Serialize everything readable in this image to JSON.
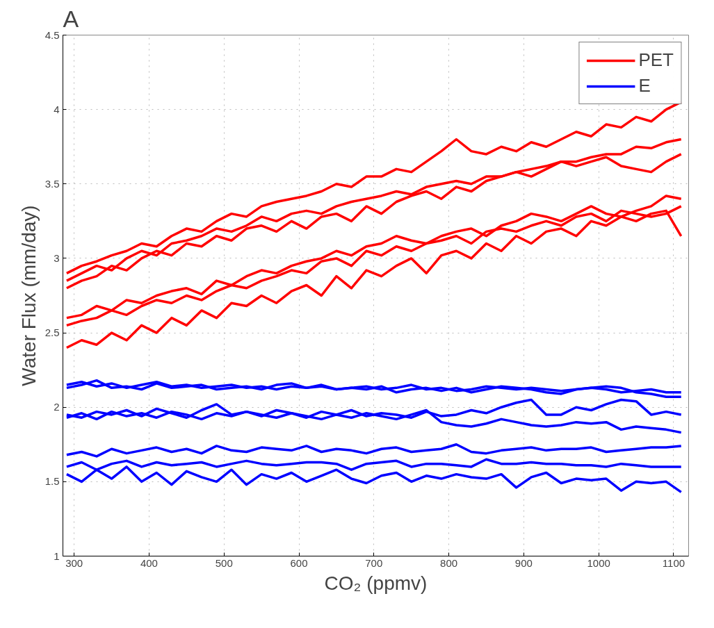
{
  "chart_data": {
    "type": "line",
    "title": "A",
    "xlabel": "CO₂ (ppmv)",
    "ylabel": "Water Flux (mm/day)",
    "xlim": [
      285,
      1120
    ],
    "xticks": [
      300,
      400,
      500,
      600,
      700,
      800,
      900,
      1000,
      1100
    ],
    "ylim": [
      1,
      4.5
    ],
    "yticks": [
      1,
      1.5,
      2,
      2.5,
      3,
      3.5,
      4,
      4.5
    ],
    "grid": true,
    "legend": "top right",
    "line_style": "solid",
    "marker": "none",
    "x": [
      290,
      310,
      330,
      350,
      370,
      390,
      410,
      430,
      450,
      470,
      490,
      510,
      530,
      550,
      570,
      590,
      610,
      630,
      650,
      670,
      690,
      710,
      730,
      750,
      770,
      790,
      810,
      830,
      850,
      870,
      890,
      910,
      930,
      950,
      970,
      990,
      1010,
      1030,
      1050,
      1070,
      1090,
      1110
    ],
    "series": [
      {
        "name": "PET",
        "color": "#ff0000",
        "values": [
          2.9,
          2.95,
          2.98,
          3.02,
          3.05,
          3.1,
          3.08,
          3.15,
          3.2,
          3.18,
          3.25,
          3.3,
          3.28,
          3.35,
          3.38,
          3.4,
          3.42,
          3.45,
          3.5,
          3.48,
          3.55,
          3.55,
          3.6,
          3.58,
          3.65,
          3.72,
          3.8,
          3.72,
          3.7,
          3.75,
          3.72,
          3.78,
          3.75,
          3.8,
          3.85,
          3.82,
          3.9,
          3.88,
          3.95,
          3.92,
          4.0,
          4.05
        ]
      },
      {
        "color": "#ff0000",
        "values": [
          2.85,
          2.9,
          2.95,
          2.92,
          3.0,
          3.05,
          3.02,
          3.1,
          3.12,
          3.15,
          3.2,
          3.18,
          3.22,
          3.28,
          3.25,
          3.3,
          3.32,
          3.3,
          3.35,
          3.38,
          3.4,
          3.42,
          3.45,
          3.43,
          3.48,
          3.5,
          3.52,
          3.5,
          3.55,
          3.55,
          3.58,
          3.6,
          3.62,
          3.65,
          3.65,
          3.68,
          3.7,
          3.7,
          3.75,
          3.74,
          3.78,
          3.8
        ]
      },
      {
        "color": "#ff0000",
        "values": [
          2.8,
          2.85,
          2.88,
          2.95,
          2.92,
          3.0,
          3.05,
          3.02,
          3.1,
          3.08,
          3.15,
          3.12,
          3.2,
          3.22,
          3.18,
          3.25,
          3.2,
          3.28,
          3.3,
          3.25,
          3.35,
          3.3,
          3.38,
          3.42,
          3.45,
          3.4,
          3.48,
          3.45,
          3.52,
          3.55,
          3.58,
          3.55,
          3.6,
          3.65,
          3.62,
          3.65,
          3.68,
          3.62,
          3.6,
          3.58,
          3.65,
          3.7
        ]
      },
      {
        "color": "#ff0000",
        "values": [
          2.6,
          2.62,
          2.68,
          2.65,
          2.72,
          2.7,
          2.75,
          2.78,
          2.8,
          2.76,
          2.85,
          2.82,
          2.88,
          2.92,
          2.9,
          2.95,
          2.98,
          3.0,
          3.05,
          3.02,
          3.08,
          3.1,
          3.15,
          3.12,
          3.1,
          3.15,
          3.18,
          3.2,
          3.15,
          3.22,
          3.25,
          3.3,
          3.28,
          3.25,
          3.3,
          3.35,
          3.3,
          3.28,
          3.32,
          3.35,
          3.42,
          3.4
        ]
      },
      {
        "color": "#ff0000",
        "values": [
          2.55,
          2.58,
          2.6,
          2.65,
          2.62,
          2.68,
          2.72,
          2.7,
          2.75,
          2.72,
          2.78,
          2.82,
          2.8,
          2.85,
          2.88,
          2.92,
          2.9,
          2.98,
          3.0,
          2.95,
          3.05,
          3.02,
          3.08,
          3.05,
          3.1,
          3.12,
          3.15,
          3.1,
          3.18,
          3.2,
          3.18,
          3.22,
          3.25,
          3.22,
          3.28,
          3.3,
          3.25,
          3.32,
          3.3,
          3.28,
          3.3,
          3.35
        ]
      },
      {
        "color": "#ff0000",
        "values": [
          2.4,
          2.45,
          2.42,
          2.5,
          2.45,
          2.55,
          2.5,
          2.6,
          2.55,
          2.65,
          2.6,
          2.7,
          2.68,
          2.75,
          2.7,
          2.78,
          2.82,
          2.75,
          2.88,
          2.8,
          2.92,
          2.88,
          2.95,
          3.0,
          2.9,
          3.02,
          3.05,
          3.0,
          3.1,
          3.05,
          3.15,
          3.1,
          3.18,
          3.2,
          3.15,
          3.25,
          3.22,
          3.28,
          3.25,
          3.3,
          3.32,
          3.15
        ]
      },
      {
        "name": "E",
        "color": "#0000ff",
        "values": [
          2.15,
          2.17,
          2.14,
          2.16,
          2.13,
          2.15,
          2.17,
          2.14,
          2.15,
          2.13,
          2.14,
          2.15,
          2.13,
          2.14,
          2.12,
          2.14,
          2.13,
          2.15,
          2.12,
          2.13,
          2.14,
          2.12,
          2.13,
          2.15,
          2.12,
          2.13,
          2.11,
          2.12,
          2.14,
          2.13,
          2.12,
          2.13,
          2.12,
          2.11,
          2.12,
          2.13,
          2.12,
          2.1,
          2.11,
          2.12,
          2.1,
          2.1
        ]
      },
      {
        "color": "#0000ff",
        "values": [
          2.13,
          2.15,
          2.18,
          2.13,
          2.14,
          2.12,
          2.16,
          2.13,
          2.14,
          2.15,
          2.12,
          2.13,
          2.14,
          2.12,
          2.15,
          2.16,
          2.13,
          2.14,
          2.12,
          2.13,
          2.12,
          2.14,
          2.1,
          2.12,
          2.13,
          2.11,
          2.13,
          2.1,
          2.12,
          2.14,
          2.13,
          2.12,
          2.1,
          2.09,
          2.12,
          2.13,
          2.14,
          2.13,
          2.1,
          2.09,
          2.07,
          2.07
        ]
      },
      {
        "color": "#0000ff",
        "values": [
          1.95,
          1.93,
          1.97,
          1.95,
          1.98,
          1.94,
          1.99,
          1.96,
          1.93,
          1.98,
          2.02,
          1.95,
          1.97,
          1.94,
          1.98,
          1.96,
          1.93,
          1.97,
          1.95,
          1.98,
          1.94,
          1.96,
          1.95,
          1.93,
          1.97,
          1.94,
          1.95,
          1.98,
          1.96,
          2.0,
          2.03,
          2.05,
          1.95,
          1.95,
          2.0,
          1.98,
          2.02,
          2.05,
          2.04,
          1.95,
          1.97,
          1.95
        ]
      },
      {
        "color": "#0000ff",
        "values": [
          1.93,
          1.96,
          1.92,
          1.97,
          1.94,
          1.96,
          1.93,
          1.97,
          1.95,
          1.92,
          1.96,
          1.94,
          1.97,
          1.95,
          1.93,
          1.96,
          1.94,
          1.92,
          1.95,
          1.93,
          1.96,
          1.94,
          1.92,
          1.95,
          1.98,
          1.9,
          1.88,
          1.87,
          1.89,
          1.92,
          1.9,
          1.88,
          1.87,
          1.88,
          1.9,
          1.89,
          1.9,
          1.85,
          1.87,
          1.86,
          1.85,
          1.83
        ]
      },
      {
        "color": "#0000ff",
        "values": [
          1.68,
          1.7,
          1.67,
          1.72,
          1.69,
          1.71,
          1.73,
          1.7,
          1.72,
          1.69,
          1.74,
          1.71,
          1.7,
          1.73,
          1.72,
          1.71,
          1.74,
          1.7,
          1.72,
          1.71,
          1.69,
          1.72,
          1.73,
          1.7,
          1.71,
          1.72,
          1.75,
          1.7,
          1.69,
          1.71,
          1.72,
          1.73,
          1.71,
          1.72,
          1.72,
          1.73,
          1.7,
          1.71,
          1.72,
          1.73,
          1.73,
          1.74
        ]
      },
      {
        "color": "#0000ff",
        "values": [
          1.6,
          1.63,
          1.58,
          1.62,
          1.64,
          1.6,
          1.63,
          1.61,
          1.62,
          1.63,
          1.6,
          1.62,
          1.64,
          1.62,
          1.61,
          1.62,
          1.63,
          1.63,
          1.62,
          1.58,
          1.62,
          1.63,
          1.64,
          1.6,
          1.62,
          1.62,
          1.61,
          1.6,
          1.65,
          1.62,
          1.62,
          1.63,
          1.62,
          1.62,
          1.61,
          1.61,
          1.6,
          1.62,
          1.61,
          1.6,
          1.6,
          1.6
        ]
      },
      {
        "color": "#0000ff",
        "values": [
          1.55,
          1.5,
          1.58,
          1.52,
          1.6,
          1.5,
          1.56,
          1.48,
          1.57,
          1.53,
          1.5,
          1.58,
          1.48,
          1.55,
          1.52,
          1.56,
          1.5,
          1.54,
          1.58,
          1.52,
          1.49,
          1.54,
          1.56,
          1.5,
          1.54,
          1.52,
          1.55,
          1.53,
          1.52,
          1.55,
          1.46,
          1.53,
          1.56,
          1.49,
          1.52,
          1.51,
          1.52,
          1.44,
          1.5,
          1.49,
          1.5,
          1.43
        ]
      }
    ]
  }
}
